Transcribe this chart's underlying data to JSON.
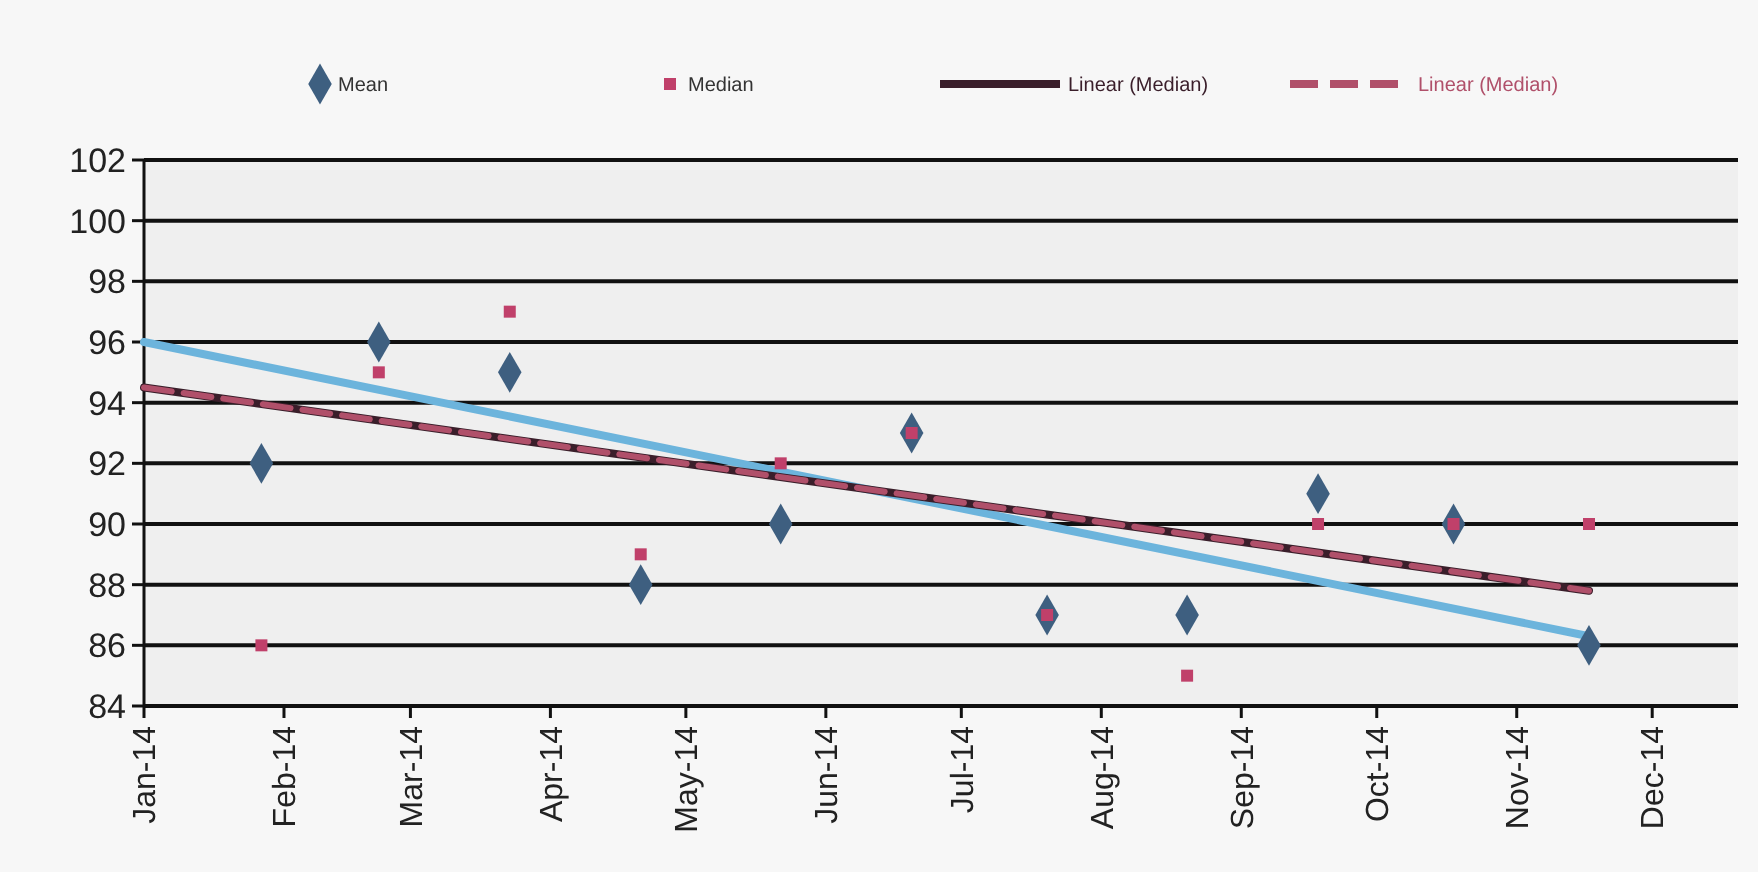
{
  "chart_data": {
    "type": "scatter",
    "legend": "top",
    "grid": "y",
    "xlim": [
      "2014-01-01",
      "2014-12-20"
    ],
    "xticks": [
      {
        "value": "2014-01-01",
        "label": "Jan-14"
      },
      {
        "value": "2014-02-01",
        "label": "Feb-14"
      },
      {
        "value": "2014-03-01",
        "label": "Mar-14"
      },
      {
        "value": "2014-04-01",
        "label": "Apr-14"
      },
      {
        "value": "2014-05-01",
        "label": "May-14"
      },
      {
        "value": "2014-06-01",
        "label": "Jun-14"
      },
      {
        "value": "2014-07-01",
        "label": "Jul-14"
      },
      {
        "value": "2014-08-01",
        "label": "Aug-14"
      },
      {
        "value": "2014-09-01",
        "label": "Sep-14"
      },
      {
        "value": "2014-10-01",
        "label": "Oct-14"
      },
      {
        "value": "2014-11-01",
        "label": "Nov-14"
      },
      {
        "value": "2014-12-01",
        "label": "Dec-14"
      }
    ],
    "ylim": [
      84,
      102
    ],
    "yticks": [
      84,
      86,
      88,
      90,
      92,
      94,
      96,
      98,
      100,
      102
    ],
    "x": [
      "2014-01-27",
      "2014-02-22",
      "2014-03-23",
      "2014-04-21",
      "2014-05-22",
      "2014-06-20",
      "2014-07-20",
      "2014-08-20",
      "2014-09-18",
      "2014-10-18",
      "2014-11-17"
    ],
    "series": [
      {
        "name": "Mean",
        "color": "#3e5f80",
        "marker": "diamond",
        "values": [
          92,
          96,
          95,
          88,
          90,
          93,
          87,
          87,
          91,
          90,
          86
        ]
      },
      {
        "name": "Median",
        "color": "#c0406a",
        "marker": "square",
        "values": [
          86,
          95,
          97,
          89,
          92,
          93,
          87,
          85,
          90,
          90,
          90
        ]
      },
      {
        "type": "line",
        "color": "#6cb4dc",
        "x": [
          "2014-01-01",
          "2014-11-17"
        ],
        "values": [
          96,
          86.3
        ]
      },
      {
        "type": "line",
        "name": "Linear (Median)",
        "color": "#3a1e2a",
        "line_style": "solid",
        "x": [
          "2014-01-01",
          "2014-11-17"
        ],
        "values": [
          94.5,
          87.8
        ]
      },
      {
        "type": "line",
        "name": "Linear (Median)",
        "color": "#b0506a",
        "line_style": "dashed",
        "x": [
          "2014-01-01",
          "2014-11-17"
        ],
        "values": [
          94.5,
          87.8
        ]
      }
    ]
  }
}
